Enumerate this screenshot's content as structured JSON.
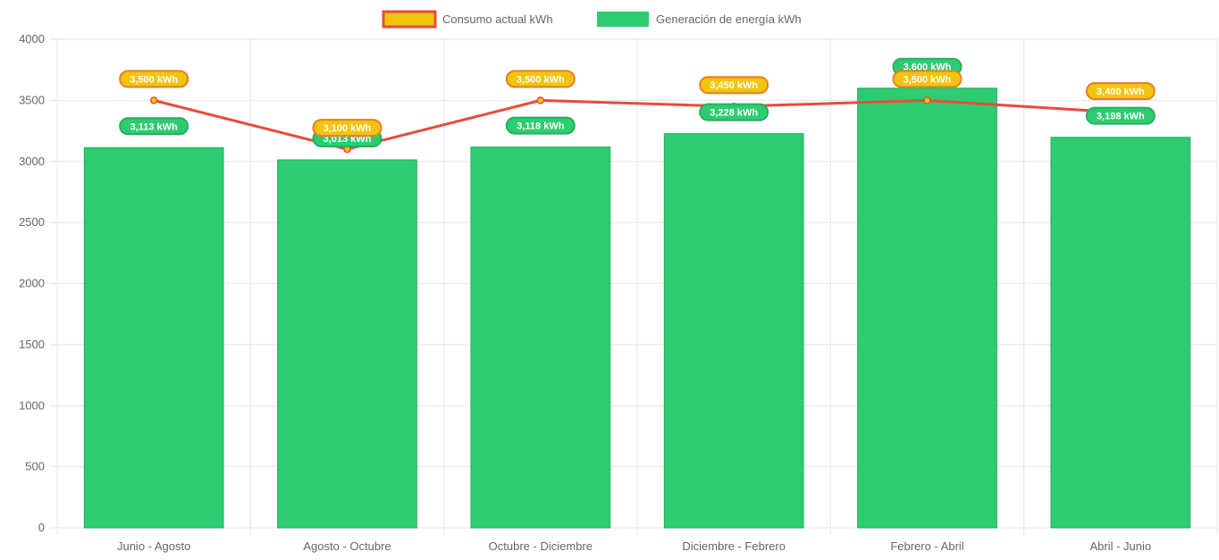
{
  "chart_data": {
    "type": "bar",
    "categories": [
      "Junio - Agosto",
      "Agosto - Octubre",
      "Octubre - Diciembre",
      "Diciembre - Febrero",
      "Febrero - Abril",
      "Abril - Junio"
    ],
    "series": [
      {
        "name": "Consumo actual kWh",
        "type": "line",
        "values": [
          3500,
          3100,
          3500,
          3450,
          3500,
          3400
        ],
        "data_labels": [
          "3,500 kWh",
          "3,100 kWh",
          "3,500 kWh",
          "3,450 kWh",
          "3,500 kWh",
          "3,400 kWh"
        ],
        "line_color": "#e74c3c",
        "fill_color": "#f1c40f"
      },
      {
        "name": "Generación de energía kWh",
        "type": "bar",
        "values": [
          3113,
          3013,
          3118,
          3228,
          3600,
          3198
        ],
        "data_labels": [
          "3,113 kWh",
          "3,013 kWh",
          "3,118 kWh",
          "3,228 kWh",
          "3,600 kWh",
          "3,198 kWh"
        ],
        "color": "#2ecc71"
      }
    ],
    "ylim": [
      0,
      4000
    ],
    "yticks": [
      "0",
      "500",
      "1000",
      "1500",
      "2000",
      "2500",
      "3000",
      "3500",
      "4000"
    ],
    "grid": true,
    "legend_position": "top-center"
  }
}
